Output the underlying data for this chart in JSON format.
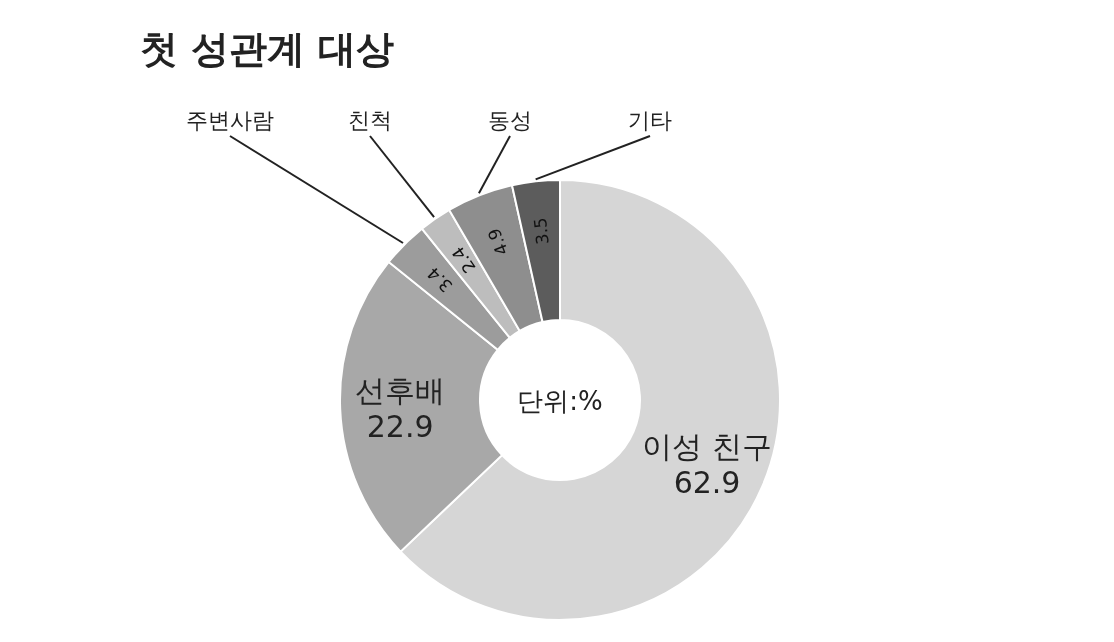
{
  "chart_data": {
    "type": "donut",
    "title": "첫 성관계 대상",
    "categories": [
      "이성 친구",
      "선후배",
      "주변사람",
      "친척",
      "동성",
      "기타"
    ],
    "values": [
      62.9,
      22.9,
      3.4,
      2.4,
      4.9,
      3.5
    ],
    "colors": [
      "#d6d6d6",
      "#a8a8a8",
      "#9c9c9c",
      "#bdbdbd",
      "#8e8e8e",
      "#5c5c5c"
    ],
    "data_labels": true,
    "annotations": [
      "단위:%"
    ]
  }
}
